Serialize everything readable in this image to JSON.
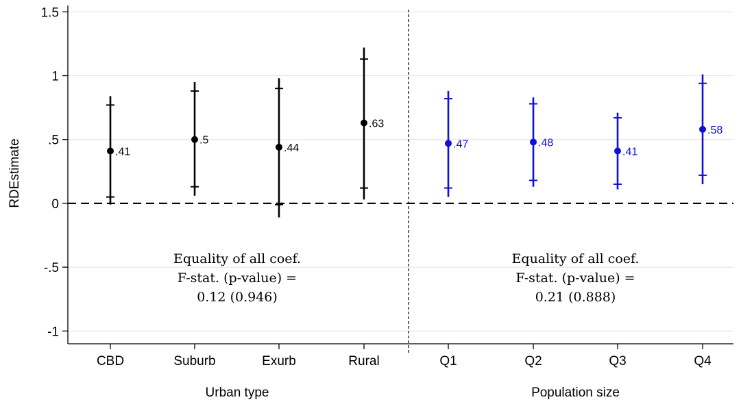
{
  "chart_data": {
    "type": "scatter",
    "ylabel": "RDEstimate",
    "ylim": [
      -1.1,
      1.55
    ],
    "yticks": [
      {
        "value": 1.5,
        "label": "1.5"
      },
      {
        "value": 1,
        "label": "1"
      },
      {
        "value": 0.5,
        "label": ".5"
      },
      {
        "value": 0,
        "label": "0"
      },
      {
        "value": -0.5,
        "label": "-.5"
      },
      {
        "value": -1,
        "label": "-1"
      }
    ],
    "grid": true,
    "reference_line_y": 0,
    "colors": {
      "urban": "#000000",
      "population": "#1010d8",
      "grid": "#e6e6e6"
    },
    "panels": [
      {
        "xlabel": "Urban type",
        "color_key": "urban",
        "note": [
          "Equality of all coef.",
          "F-stat. (p-value) =",
          "0.12 (0.946)"
        ],
        "points": [
          {
            "category": "CBD",
            "estimate": 0.41,
            "label": ".41",
            "ci90": [
              0.05,
              0.77
            ],
            "ci95": [
              -0.01,
              0.84
            ]
          },
          {
            "category": "Suburb",
            "estimate": 0.5,
            "label": ".5",
            "ci90": [
              0.13,
              0.88
            ],
            "ci95": [
              0.06,
              0.95
            ]
          },
          {
            "category": "Exurb",
            "estimate": 0.44,
            "label": ".44",
            "ci90": [
              -0.01,
              0.9
            ],
            "ci95": [
              -0.11,
              0.98
            ]
          },
          {
            "category": "Rural",
            "estimate": 0.63,
            "label": ".63",
            "ci90": [
              0.12,
              1.13
            ],
            "ci95": [
              0.03,
              1.22
            ]
          }
        ]
      },
      {
        "xlabel": "Population size",
        "color_key": "population",
        "note": [
          "Equality of all coef.",
          "F-stat. (p-value) =",
          "0.21 (0.888)"
        ],
        "points": [
          {
            "category": "Q1",
            "estimate": 0.47,
            "label": ".47",
            "ci90": [
              0.12,
              0.82
            ],
            "ci95": [
              0.05,
              0.88
            ]
          },
          {
            "category": "Q2",
            "estimate": 0.48,
            "label": ".48",
            "ci90": [
              0.18,
              0.78
            ],
            "ci95": [
              0.13,
              0.83
            ]
          },
          {
            "category": "Q3",
            "estimate": 0.41,
            "label": ".41",
            "ci90": [
              0.15,
              0.67
            ],
            "ci95": [
              0.11,
              0.71
            ]
          },
          {
            "category": "Q4",
            "estimate": 0.58,
            "label": ".58",
            "ci90": [
              0.22,
              0.94
            ],
            "ci95": [
              0.15,
              1.01
            ]
          }
        ]
      }
    ]
  }
}
